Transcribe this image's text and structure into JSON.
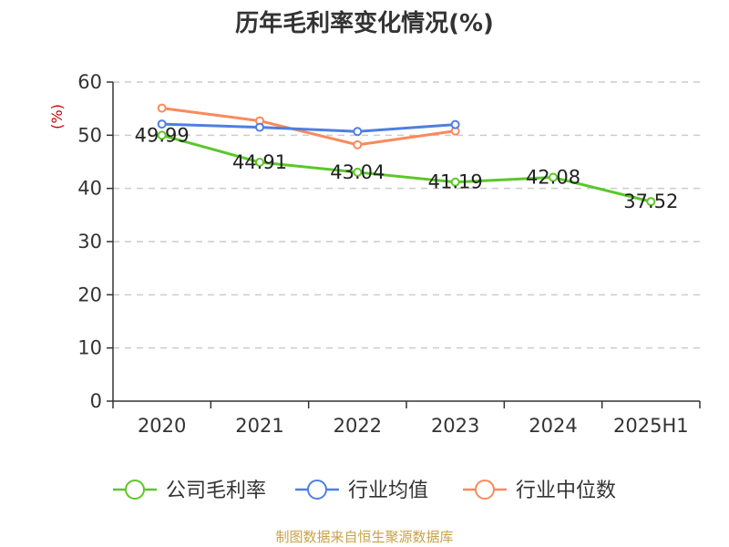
{
  "chart_data": {
    "type": "line",
    "title": "历年毛利率变化情况(%)",
    "unit": "(%)",
    "categories": [
      "2020",
      "2021",
      "2022",
      "2023",
      "2024",
      "2025H1"
    ],
    "ylim": [
      0,
      60
    ],
    "yticks": [
      "0",
      "10",
      "20",
      "30",
      "40",
      "50",
      "60"
    ],
    "grid": true,
    "legend_position": "bottom",
    "series": [
      {
        "name": "公司毛利率",
        "color": "#5cc72a",
        "values": [
          49.99,
          44.91,
          43.04,
          41.19,
          42.08,
          37.52
        ],
        "labels": [
          "49.99",
          "44.91",
          "43.04",
          "41.19",
          "42.08",
          "37.52"
        ]
      },
      {
        "name": "行业均值",
        "color": "#4f7fe0",
        "values": [
          52.1,
          51.5,
          50.7,
          52.0,
          null,
          null
        ]
      },
      {
        "name": "行业中位数",
        "color": "#f98a5c",
        "values": [
          55.1,
          52.7,
          48.2,
          50.8,
          null,
          null
        ]
      }
    ]
  },
  "source": "制图数据来自恒生聚源数据库"
}
